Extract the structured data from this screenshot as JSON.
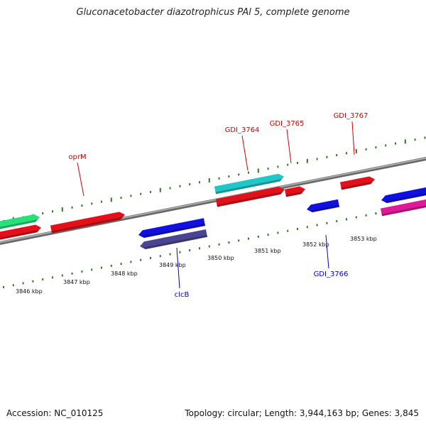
{
  "title": "Gluconacetobacter diazotrophicus PAl 5, complete genome",
  "footer": {
    "accession": "Accession: NC_010125",
    "summary": "Topology: circular; Length: 3,944,163 bp; Genes: 3,845"
  },
  "colors": {
    "backbone": "#8a8a8a",
    "tick": "#2e7d1a",
    "tick_label": "#111111",
    "forward_gene": "#e3101a",
    "reverse_gene": "#1010e0",
    "cyan_gene": "#21c6c8",
    "green_gene": "#28e07a",
    "purple_gene": "#4a4590",
    "pink_gene": "#e0199a",
    "forward_label": "#cc0000",
    "reverse_label": "#0000cc"
  },
  "scale": {
    "unit": "kbp",
    "tick_labels": [
      "3846 kbp",
      "3847 kbp",
      "3848 kbp",
      "3849 kbp",
      "3850 kbp",
      "3851 kbp",
      "3852 kbp",
      "3853 kbp"
    ]
  },
  "genes": [
    {
      "name": "",
      "strand": "forward",
      "color": "green_gene"
    },
    {
      "name": "",
      "strand": "forward",
      "color": "forward_gene"
    },
    {
      "name": "oprM",
      "strand": "forward",
      "color": "forward_gene"
    },
    {
      "name": "",
      "strand": "reverse",
      "color": "reverse_gene"
    },
    {
      "name": "clcB",
      "strand": "reverse",
      "color": "purple_gene"
    },
    {
      "name": "GDI_3764",
      "strand": "forward",
      "color": "cyan_gene"
    },
    {
      "name": "",
      "strand": "forward",
      "color": "forward_gene"
    },
    {
      "name": "GDI_3765",
      "strand": "forward",
      "color": "forward_gene"
    },
    {
      "name": "GDI_3766",
      "strand": "reverse",
      "color": "reverse_gene"
    },
    {
      "name": "GDI_3767",
      "strand": "forward",
      "color": "forward_gene"
    },
    {
      "name": "",
      "strand": "reverse",
      "color": "reverse_gene"
    },
    {
      "name": "",
      "strand": "forward",
      "color": "pink_gene"
    }
  ]
}
